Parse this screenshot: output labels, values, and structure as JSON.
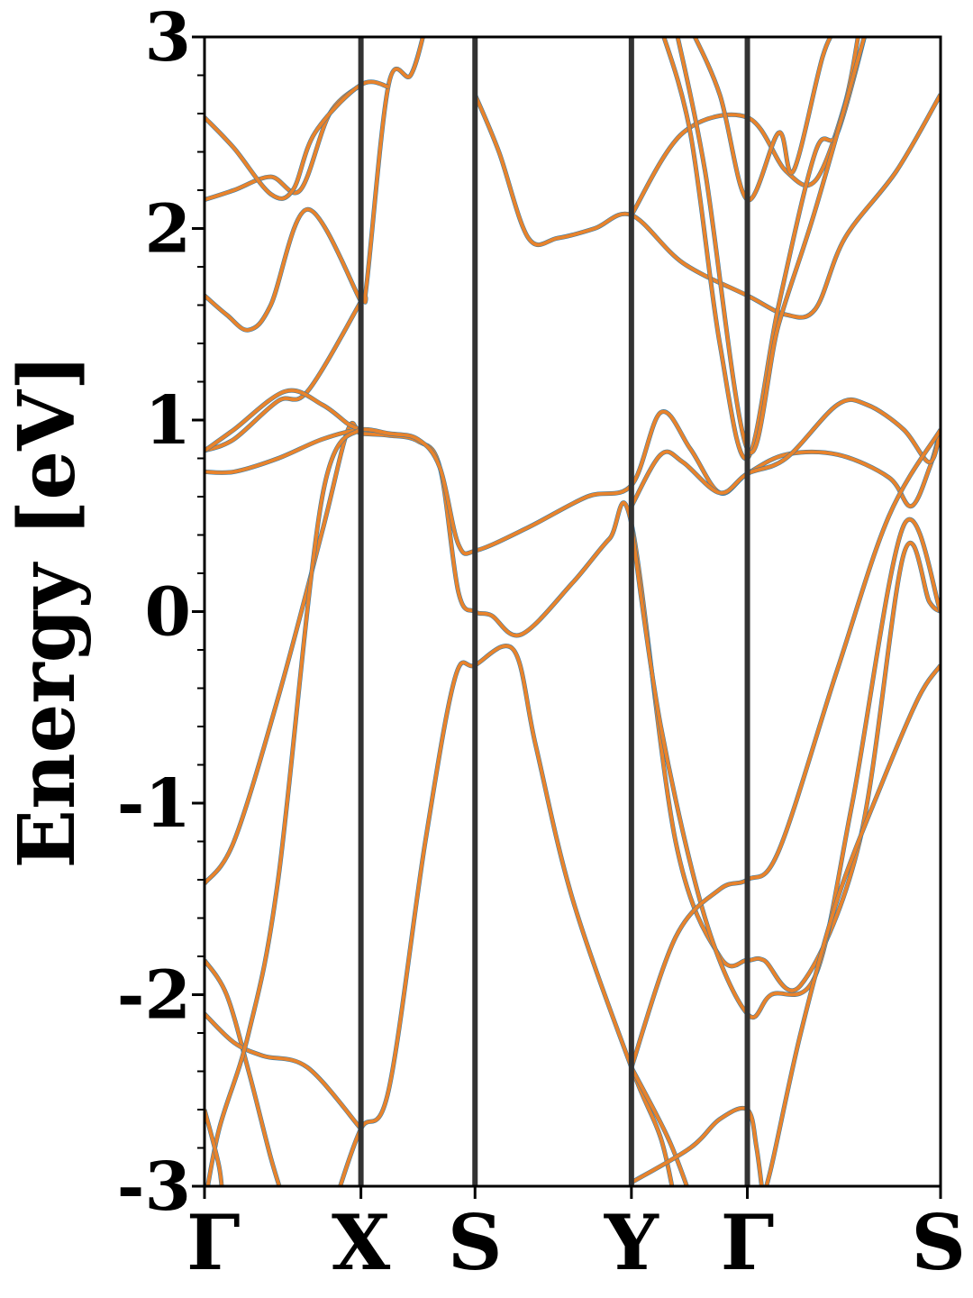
{
  "chart_data": {
    "type": "line",
    "ylabel": "Energy [eV]",
    "ylim": [
      -3,
      3
    ],
    "yticks": [
      3,
      2,
      1,
      0,
      -1,
      -2,
      -3
    ],
    "y_minor_step": 0.2,
    "k_path": {
      "labels": [
        "Γ",
        "X",
        "S",
        "Y",
        "Γ",
        "S"
      ],
      "positions": [
        0.0,
        0.2125,
        0.3675,
        0.58,
        0.7375,
        1.0
      ]
    },
    "grid": false,
    "legend": "none",
    "colors": {
      "series_a": "#1f77b4",
      "series_b": "#e8832c",
      "k_lines": "#333333",
      "frame": "#000000"
    },
    "series": [
      {
        "color_key": "series_b",
        "bands": [
          [
            [
              0,
              -1.42
            ],
            [
              0.04,
              -1.2
            ],
            [
              0.1,
              -0.45
            ],
            [
              0.16,
              0.42
            ],
            [
              0.195,
              0.95
            ],
            [
              0.2125,
              0.93
            ],
            [
              0.25,
              0.92
            ],
            [
              0.29,
              0.89
            ],
            [
              0.32,
              0.75
            ],
            [
              0.345,
              0.1
            ],
            [
              0.3675,
              0.0
            ],
            [
              0.39,
              -0.02
            ],
            [
              0.43,
              -0.12
            ],
            [
              0.5,
              0.15
            ],
            [
              0.55,
              0.38
            ],
            [
              0.58,
              0.46
            ],
            [
              0.64,
              -1.2
            ],
            [
              0.7,
              -1.8
            ],
            [
              0.7375,
              -1.82
            ],
            [
              0.76,
              -1.82
            ],
            [
              0.81,
              -1.95
            ],
            [
              0.89,
              -1.2
            ],
            [
              0.95,
              0.3
            ],
            [
              0.985,
              0.05
            ],
            [
              1.0,
              0.0
            ]
          ],
          [
            [
              0,
              0.73
            ],
            [
              0.04,
              0.73
            ],
            [
              0.1,
              0.8
            ],
            [
              0.16,
              0.9
            ],
            [
              0.2125,
              0.95
            ],
            [
              0.25,
              0.93
            ],
            [
              0.29,
              0.9
            ],
            [
              0.32,
              0.75
            ],
            [
              0.345,
              0.35
            ],
            [
              0.37,
              0.32
            ],
            [
              0.44,
              0.44
            ],
            [
              0.52,
              0.6
            ],
            [
              0.58,
              0.66
            ],
            [
              0.62,
              1.04
            ],
            [
              0.66,
              0.85
            ],
            [
              0.7,
              0.62
            ],
            [
              0.7375,
              0.72
            ],
            [
              0.79,
              0.82
            ],
            [
              0.86,
              0.82
            ],
            [
              0.93,
              0.7
            ],
            [
              0.96,
              0.55
            ],
            [
              0.985,
              0.75
            ],
            [
              1.0,
              0.95
            ]
          ],
          [
            [
              0,
              0.84
            ],
            [
              0.04,
              0.9
            ],
            [
              0.1,
              1.1
            ],
            [
              0.14,
              1.15
            ],
            [
              0.2125,
              1.62
            ],
            [
              0.22,
              1.7
            ],
            [
              0.25,
              2.75
            ],
            [
              0.28,
              2.8
            ],
            [
              0.3,
              3.05
            ]
          ],
          [
            [
              0,
              0.84
            ],
            [
              0.04,
              0.95
            ],
            [
              0.11,
              1.15
            ],
            [
              0.16,
              1.08
            ],
            [
              0.195,
              0.98
            ],
            [
              0.2125,
              0.95
            ]
          ],
          [
            [
              0,
              1.65
            ],
            [
              0.03,
              1.55
            ],
            [
              0.06,
              1.47
            ],
            [
              0.09,
              1.6
            ],
            [
              0.14,
              2.1
            ],
            [
              0.2125,
              1.62
            ]
          ],
          [
            [
              0,
              2.15
            ],
            [
              0.04,
              2.2
            ],
            [
              0.09,
              2.27
            ],
            [
              0.13,
              2.2
            ],
            [
              0.17,
              2.6
            ],
            [
              0.2125,
              2.75
            ]
          ],
          [
            [
              0,
              2.58
            ],
            [
              0.04,
              2.42
            ],
            [
              0.09,
              2.18
            ],
            [
              0.12,
              2.2
            ],
            [
              0.15,
              2.5
            ],
            [
              0.2125,
              2.75
            ],
            [
              0.25,
              2.74
            ]
          ],
          [
            [
              0,
              -1.82
            ],
            [
              0.03,
              -2.0
            ],
            [
              0.06,
              -2.4
            ],
            [
              0.09,
              -2.85
            ],
            [
              0.11,
              -3.1
            ]
          ],
          [
            [
              0,
              -2.1
            ],
            [
              0.04,
              -2.25
            ],
            [
              0.08,
              -2.32
            ],
            [
              0.14,
              -2.38
            ],
            [
              0.2125,
              -2.7
            ]
          ],
          [
            [
              0,
              -3.1
            ],
            [
              0.02,
              -2.7
            ],
            [
              0.06,
              -2.2
            ],
            [
              0.1,
              -1.4
            ],
            [
              0.16,
              0.6
            ],
            [
              0.2125,
              0.96
            ]
          ],
          [
            [
              0,
              -2.6
            ],
            [
              0.02,
              -2.9
            ],
            [
              0.025,
              -3.1
            ]
          ],
          [
            [
              0.18,
              -3.05
            ],
            [
              0.2125,
              -2.7
            ],
            [
              0.25,
              -2.5
            ],
            [
              0.3,
              -1.2
            ],
            [
              0.34,
              -0.35
            ],
            [
              0.3675,
              -0.28
            ],
            [
              0.42,
              -0.2
            ],
            [
              0.45,
              -0.7
            ],
            [
              0.5,
              -1.5
            ],
            [
              0.58,
              -2.38
            ],
            [
              0.62,
              -2.75
            ],
            [
              0.64,
              -3.1
            ]
          ],
          [
            [
              0.3675,
              2.7
            ],
            [
              0.4,
              2.4
            ],
            [
              0.44,
              1.95
            ],
            [
              0.48,
              1.95
            ],
            [
              0.53,
              2.0
            ],
            [
              0.58,
              2.07
            ],
            [
              0.65,
              1.82
            ],
            [
              0.7375,
              1.65
            ],
            [
              0.79,
              1.55
            ],
            [
              0.83,
              1.58
            ],
            [
              0.87,
              1.95
            ],
            [
              0.94,
              2.3
            ],
            [
              1.0,
              2.7
            ]
          ],
          [
            [
              0.58,
              2.07
            ],
            [
              0.65,
              2.5
            ],
            [
              0.7375,
              2.58
            ],
            [
              0.79,
              2.3
            ],
            [
              0.83,
              2.25
            ],
            [
              0.87,
              2.65
            ],
            [
              0.89,
              3.05
            ]
          ],
          [
            [
              0.58,
              0.55
            ],
            [
              0.62,
              0.82
            ],
            [
              0.65,
              0.78
            ],
            [
              0.7,
              0.62
            ],
            [
              0.7375,
              0.72
            ],
            [
              0.79,
              0.8
            ],
            [
              0.86,
              1.08
            ],
            [
              0.9,
              1.08
            ],
            [
              0.95,
              0.95
            ],
            [
              0.985,
              0.78
            ],
            [
              1.0,
              0.95
            ]
          ],
          [
            [
              0.58,
              0.45
            ],
            [
              0.62,
              -0.6
            ],
            [
              0.68,
              -1.6
            ],
            [
              0.7375,
              -2.1
            ],
            [
              0.77,
              -2.0
            ],
            [
              0.83,
              -1.9
            ],
            [
              0.88,
              -1.0
            ],
            [
              0.95,
              0.45
            ],
            [
              1.0,
              0.0
            ]
          ],
          [
            [
              0.58,
              -2.38
            ],
            [
              0.64,
              -1.7
            ],
            [
              0.7,
              -1.45
            ],
            [
              0.7375,
              -1.4
            ],
            [
              0.78,
              -1.25
            ],
            [
              0.86,
              -0.3
            ],
            [
              0.93,
              0.5
            ],
            [
              1.0,
              0.95
            ]
          ],
          [
            [
              0.58,
              -2.38
            ],
            [
              0.63,
              -2.75
            ],
            [
              0.66,
              -3.05
            ]
          ],
          [
            [
              0.58,
              -2.98
            ],
            [
              0.66,
              -2.8
            ],
            [
              0.7,
              -2.65
            ],
            [
              0.7375,
              -2.6
            ],
            [
              0.75,
              -2.8
            ],
            [
              0.76,
              -3.1
            ]
          ],
          [
            [
              0.755,
              -3.1
            ],
            [
              0.77,
              -2.9
            ],
            [
              0.81,
              -2.2
            ],
            [
              0.86,
              -1.5
            ],
            [
              0.92,
              -0.9
            ],
            [
              0.97,
              -0.45
            ],
            [
              1.0,
              -0.28
            ]
          ],
          [
            [
              0.62,
              3.05
            ],
            [
              0.66,
              2.5
            ],
            [
              0.7,
              1.4
            ],
            [
              0.7375,
              0.8
            ],
            [
              0.78,
              1.6
            ],
            [
              0.83,
              2.4
            ],
            [
              0.86,
              2.5
            ],
            [
              0.9,
              3.05
            ]
          ],
          [
            [
              0.64,
              3.05
            ],
            [
              0.68,
              2.3
            ],
            [
              0.7375,
              0.85
            ],
            [
              0.78,
              1.5
            ],
            [
              0.83,
              2.1
            ],
            [
              0.9,
              3.05
            ]
          ],
          [
            [
              0.66,
              3.05
            ],
            [
              0.7,
              2.7
            ],
            [
              0.7375,
              2.15
            ],
            [
              0.78,
              2.5
            ],
            [
              0.8,
              2.3
            ],
            [
              0.84,
              2.9
            ],
            [
              0.86,
              3.05
            ]
          ]
        ]
      }
    ]
  }
}
